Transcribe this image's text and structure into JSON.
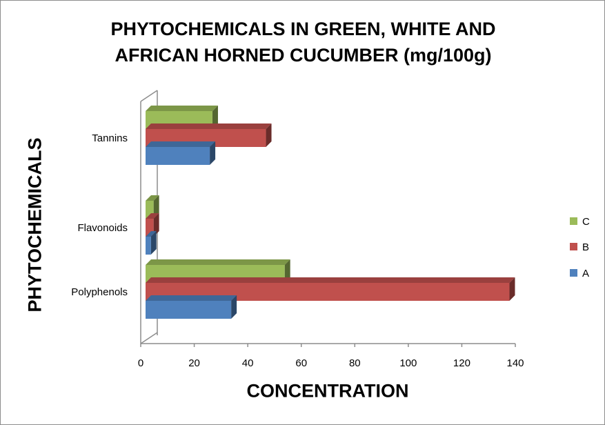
{
  "chart_data": {
    "type": "bar",
    "orientation": "horizontal",
    "title": "PHYTOCHEMICALS IN GREEN, WHITE AND AFRICAN HORNED CUCUMBER  (mg/100g)",
    "xlabel": "CONCENTRATION",
    "ylabel": "PHYTOCHEMICALS",
    "categories": [
      "Polyphenols",
      "Flavonoids",
      "Tannins"
    ],
    "series": [
      {
        "name": "A",
        "color": "#4f81bd",
        "values": [
          32,
          2,
          24
        ]
      },
      {
        "name": "B",
        "color": "#c0504d",
        "values": [
          136,
          3,
          45
        ]
      },
      {
        "name": "C",
        "color": "#9bbb59",
        "values": [
          52,
          3,
          25
        ]
      }
    ],
    "xlim": [
      0,
      140
    ],
    "xticks": [
      0,
      20,
      40,
      60,
      80,
      100,
      120,
      140
    ],
    "legend": "right",
    "legend_order": [
      "C",
      "B",
      "A"
    ],
    "grid": false,
    "style": "3d"
  }
}
